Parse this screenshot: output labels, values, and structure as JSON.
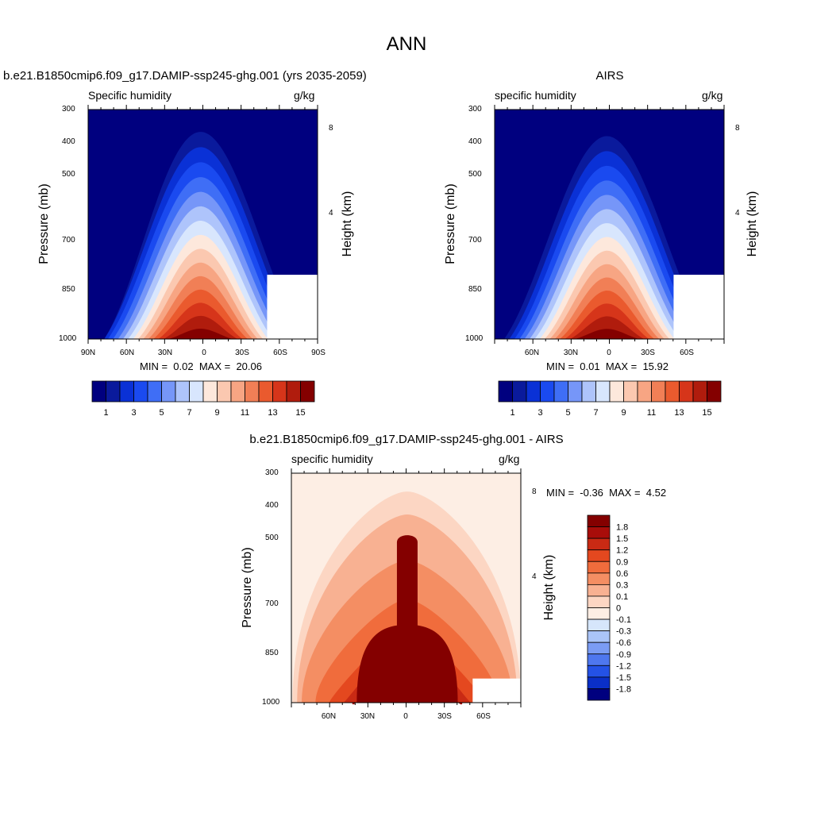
{
  "title": "ANN",
  "colors": {
    "abs_levels": [
      "#00007f",
      "#0a1a9c",
      "#0a31d6",
      "#1a4af0",
      "#3f6ef6",
      "#7696f8",
      "#aec4fb",
      "#d8e6fd",
      "#fde8dc",
      "#fbc8b0",
      "#f7a583",
      "#f17f56",
      "#ea5a2e",
      "#d6351a",
      "#b01c0d",
      "#840000"
    ],
    "diff_levels": [
      "#840000",
      "#a80d0a",
      "#c92a14",
      "#e4481f",
      "#f06c3c",
      "#f48e63",
      "#f8b192",
      "#fcd6c3",
      "#fdeee4",
      "#d6e6fb",
      "#aac4f8",
      "#7b9cf4",
      "#4e77ef",
      "#2452e6",
      "#0a2fc7",
      "#00007f"
    ]
  },
  "chart_data": [
    {
      "type": "heatmap",
      "name": "model",
      "subtitle": "b.e21.B1850cmip6.f09_g17.DAMIP-ssp245-ghg.001 (yrs 2035-2059)",
      "left_label": "Specific humidity",
      "units": "g/kg",
      "ylabel": "Pressure (mb)",
      "ylabel_right": "Height (km)",
      "y_ticks": [
        "300",
        "400",
        "500",
        "700",
        "850",
        "1000"
      ],
      "y_ticks_right": [
        "8",
        "4"
      ],
      "x_ticks": [
        "90N",
        "60N",
        "30N",
        "0",
        "30S",
        "60S",
        "90S"
      ],
      "min_label": "MIN =",
      "min_value": "0.02",
      "max_label": "MAX =",
      "max_value": "20.06",
      "colorbar_labels": [
        "1",
        "3",
        "5",
        "7",
        "9",
        "11",
        "13",
        "15"
      ],
      "peak": 20.06,
      "fill_start": 0.07
    },
    {
      "type": "heatmap",
      "name": "obs",
      "subtitle": "AIRS",
      "left_label": "specific humidity",
      "units": "g/kg",
      "ylabel": "Pressure (mb)",
      "ylabel_right": "Height (km)",
      "y_ticks": [
        "300",
        "400",
        "500",
        "700",
        "850",
        "1000"
      ],
      "y_ticks_right": [
        "8",
        "4"
      ],
      "x_ticks": [
        "60N",
        "30N",
        "0",
        "30S",
        "60S"
      ],
      "min_label": "MIN =",
      "min_value": "0.01",
      "max_label": "MAX =",
      "max_value": "15.92",
      "colorbar_labels": [
        "1",
        "3",
        "5",
        "7",
        "9",
        "11",
        "13",
        "15"
      ],
      "peak": 15.92,
      "fill_start": 0
    },
    {
      "type": "heatmap",
      "name": "difference",
      "subtitle": "b.e21.B1850cmip6.f09_g17.DAMIP-ssp245-ghg.001 - AIRS",
      "left_label": "specific humidity",
      "units": "g/kg",
      "ylabel": "Pressure (mb)",
      "ylabel_right": "Height (km)",
      "y_ticks": [
        "300",
        "400",
        "500",
        "700",
        "850",
        "1000"
      ],
      "y_ticks_right": [
        "8",
        "4"
      ],
      "x_ticks": [
        "60N",
        "30N",
        "0",
        "30S",
        "60S"
      ],
      "min_label": "MIN =",
      "min_value": "-0.36",
      "max_label": "MAX =",
      "max_value": "4.52",
      "colorbar_labels": [
        "1.8",
        "1.5",
        "1.2",
        "0.9",
        "0.6",
        "0.3",
        "0.1",
        "0",
        "-0.1",
        "-0.3",
        "-0.6",
        "-0.9",
        "-1.2",
        "-1.5",
        "-1.8"
      ]
    }
  ]
}
